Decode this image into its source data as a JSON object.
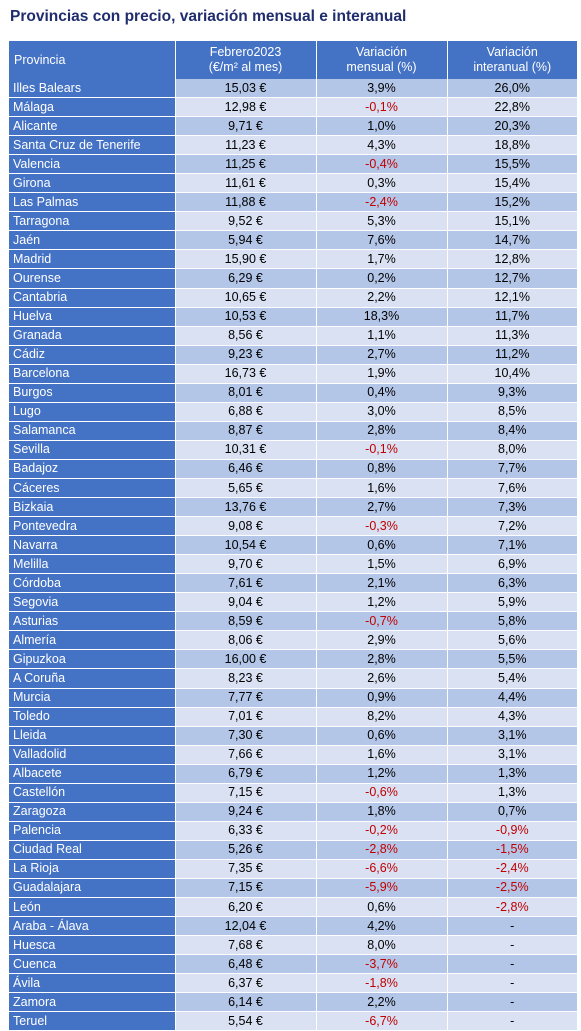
{
  "title": "Provincias con precio, variación mensual e interanual",
  "headers": {
    "provincia": "Provincia",
    "precio_l1": "Febrero2023",
    "precio_l2": "(€/m² al mes)",
    "mensual_l1": "Variación",
    "mensual_l2": "mensual (%)",
    "interanual_l1": "Variación",
    "interanual_l2": "interanual (%)"
  },
  "colors": {
    "header_bg": "#4472c4",
    "row_odd": "#b4c6e7",
    "row_even": "#d9e1f2",
    "negative": "#c00000",
    "title": "#1f2d6d"
  },
  "rows": [
    {
      "provincia": "Illes Balears",
      "precio": "15,03 €",
      "mensual": "3,9%",
      "interanual": "26,0%"
    },
    {
      "provincia": "Málaga",
      "precio": "12,98 €",
      "mensual": "-0,1%",
      "interanual": "22,8%"
    },
    {
      "provincia": "Alicante",
      "precio": "9,71 €",
      "mensual": "1,0%",
      "interanual": "20,3%"
    },
    {
      "provincia": "Santa Cruz de Tenerife",
      "precio": "11,23 €",
      "mensual": "4,3%",
      "interanual": "18,8%"
    },
    {
      "provincia": "Valencia",
      "precio": "11,25 €",
      "mensual": "-0,4%",
      "interanual": "15,5%"
    },
    {
      "provincia": "Girona",
      "precio": "11,61 €",
      "mensual": "0,3%",
      "interanual": "15,4%"
    },
    {
      "provincia": "Las Palmas",
      "precio": "11,88 €",
      "mensual": "-2,4%",
      "interanual": "15,2%"
    },
    {
      "provincia": "Tarragona",
      "precio": "9,52 €",
      "mensual": "5,3%",
      "interanual": "15,1%"
    },
    {
      "provincia": "Jaén",
      "precio": "5,94 €",
      "mensual": "7,6%",
      "interanual": "14,7%"
    },
    {
      "provincia": "Madrid",
      "precio": "15,90 €",
      "mensual": "1,7%",
      "interanual": "12,8%"
    },
    {
      "provincia": "Ourense",
      "precio": "6,29 €",
      "mensual": "0,2%",
      "interanual": "12,7%"
    },
    {
      "provincia": "Cantabria",
      "precio": "10,65 €",
      "mensual": "2,2%",
      "interanual": "12,1%"
    },
    {
      "provincia": "Huelva",
      "precio": "10,53 €",
      "mensual": "18,3%",
      "interanual": "11,7%"
    },
    {
      "provincia": "Granada",
      "precio": "8,56 €",
      "mensual": "1,1%",
      "interanual": "11,3%"
    },
    {
      "provincia": "Cádiz",
      "precio": "9,23 €",
      "mensual": "2,7%",
      "interanual": "11,2%"
    },
    {
      "provincia": "Barcelona",
      "precio": "16,73 €",
      "mensual": "1,9%",
      "interanual": "10,4%"
    },
    {
      "provincia": "Burgos",
      "precio": "8,01 €",
      "mensual": "0,4%",
      "interanual": "9,3%"
    },
    {
      "provincia": "Lugo",
      "precio": "6,88 €",
      "mensual": "3,0%",
      "interanual": "8,5%"
    },
    {
      "provincia": "Salamanca",
      "precio": "8,87 €",
      "mensual": "2,8%",
      "interanual": "8,4%"
    },
    {
      "provincia": "Sevilla",
      "precio": "10,31 €",
      "mensual": "-0,1%",
      "interanual": "8,0%"
    },
    {
      "provincia": "Badajoz",
      "precio": "6,46 €",
      "mensual": "0,8%",
      "interanual": "7,7%"
    },
    {
      "provincia": "Cáceres",
      "precio": "5,65 €",
      "mensual": "1,6%",
      "interanual": "7,6%"
    },
    {
      "provincia": "Bizkaia",
      "precio": "13,76 €",
      "mensual": "2,7%",
      "interanual": "7,3%"
    },
    {
      "provincia": "Pontevedra",
      "precio": "9,08 €",
      "mensual": "-0,3%",
      "interanual": "7,2%"
    },
    {
      "provincia": "Navarra",
      "precio": "10,54 €",
      "mensual": "0,6%",
      "interanual": "7,1%"
    },
    {
      "provincia": "Melilla",
      "precio": "9,70 €",
      "mensual": "1,5%",
      "interanual": "6,9%"
    },
    {
      "provincia": "Córdoba",
      "precio": "7,61 €",
      "mensual": "2,1%",
      "interanual": "6,3%"
    },
    {
      "provincia": "Segovia",
      "precio": "9,04 €",
      "mensual": "1,2%",
      "interanual": "5,9%"
    },
    {
      "provincia": "Asturias",
      "precio": "8,59 €",
      "mensual": "-0,7%",
      "interanual": "5,8%"
    },
    {
      "provincia": "Almería",
      "precio": "8,06 €",
      "mensual": "2,9%",
      "interanual": "5,6%"
    },
    {
      "provincia": "Gipuzkoa",
      "precio": "16,00 €",
      "mensual": "2,8%",
      "interanual": "5,5%"
    },
    {
      "provincia": "A Coruña",
      "precio": "8,23 €",
      "mensual": "2,6%",
      "interanual": "5,4%"
    },
    {
      "provincia": "Murcia",
      "precio": "7,77 €",
      "mensual": "0,9%",
      "interanual": "4,4%"
    },
    {
      "provincia": "Toledo",
      "precio": "7,01 €",
      "mensual": "8,2%",
      "interanual": "4,3%"
    },
    {
      "provincia": "Lleida",
      "precio": "7,30 €",
      "mensual": "0,6%",
      "interanual": "3,1%"
    },
    {
      "provincia": "Valladolid",
      "precio": "7,66 €",
      "mensual": "1,6%",
      "interanual": "3,1%"
    },
    {
      "provincia": "Albacete",
      "precio": "6,79 €",
      "mensual": "1,2%",
      "interanual": "1,3%"
    },
    {
      "provincia": "Castellón",
      "precio": "7,15 €",
      "mensual": "-0,6%",
      "interanual": "1,3%"
    },
    {
      "provincia": "Zaragoza",
      "precio": "9,24 €",
      "mensual": "1,8%",
      "interanual": "0,7%"
    },
    {
      "provincia": "Palencia",
      "precio": "6,33 €",
      "mensual": "-0,2%",
      "interanual": "-0,9%"
    },
    {
      "provincia": "Ciudad Real",
      "precio": "5,26 €",
      "mensual": "-2,8%",
      "interanual": "-1,5%"
    },
    {
      "provincia": "La Rioja",
      "precio": "7,35 €",
      "mensual": "-6,6%",
      "interanual": "-2,4%"
    },
    {
      "provincia": "Guadalajara",
      "precio": "7,15 €",
      "mensual": "-5,9%",
      "interanual": "-2,5%"
    },
    {
      "provincia": "León",
      "precio": "6,20 €",
      "mensual": "0,6%",
      "interanual": "-2,8%"
    },
    {
      "provincia": "Araba - Álava",
      "precio": "12,04 €",
      "mensual": "4,2%",
      "interanual": "-"
    },
    {
      "provincia": "Huesca",
      "precio": "7,68 €",
      "mensual": "8,0%",
      "interanual": "-"
    },
    {
      "provincia": "Cuenca",
      "precio": "6,48 €",
      "mensual": "-3,7%",
      "interanual": "-"
    },
    {
      "provincia": "Ávila",
      "precio": "6,37 €",
      "mensual": "-1,8%",
      "interanual": "-"
    },
    {
      "provincia": "Zamora",
      "precio": "6,14 €",
      "mensual": "2,2%",
      "interanual": "-"
    },
    {
      "provincia": "Teruel",
      "precio": "5,54 €",
      "mensual": "-6,7%",
      "interanual": "-"
    }
  ]
}
